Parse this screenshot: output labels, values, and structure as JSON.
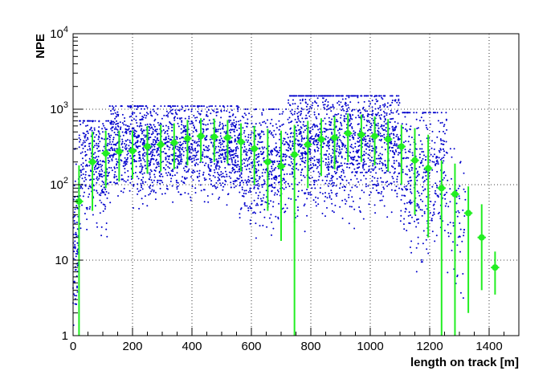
{
  "chart_data": {
    "type": "scatter",
    "xlabel": "length on track [m]",
    "ylabel": "NPE",
    "xlim": [
      0,
      1500
    ],
    "ylim": [
      1,
      10000
    ],
    "yscale": "log",
    "grid": true,
    "x_ticks": [
      0,
      200,
      400,
      600,
      800,
      1000,
      1200,
      1400
    ],
    "x_tick_labels": [
      "0",
      "200",
      "400",
      "600",
      "800",
      "1000",
      "1200",
      "1400"
    ],
    "y_ticks": [
      1,
      10,
      100,
      1000,
      10000
    ],
    "y_tick_labels": [
      {
        "base": "1",
        "exp": ""
      },
      {
        "base": "10",
        "exp": ""
      },
      {
        "base": "10",
        "exp": "2"
      },
      {
        "base": "10",
        "exp": "3"
      },
      {
        "base": "10",
        "exp": "4"
      }
    ],
    "colors": {
      "scatter": "#0000cc",
      "profile": "#22ee22",
      "grid": "#000000"
    },
    "series": [
      {
        "kind": "profile",
        "x": [
          20,
          65,
          110,
          155,
          200,
          250,
          295,
          340,
          385,
          430,
          475,
          520,
          565,
          610,
          655,
          700,
          745,
          790,
          835,
          880,
          925,
          970,
          1015,
          1060,
          1105,
          1150,
          1195,
          1240,
          1285,
          1330,
          1375,
          1420
        ],
        "y": [
          60,
          200,
          260,
          275,
          280,
          320,
          340,
          360,
          410,
          440,
          430,
          420,
          370,
          300,
          200,
          175,
          250,
          340,
          400,
          420,
          480,
          460,
          440,
          400,
          320,
          210,
          165,
          90,
          75,
          42,
          20,
          8
        ],
        "y_low": [
          1,
          45,
          90,
          110,
          120,
          140,
          150,
          160,
          180,
          200,
          200,
          190,
          150,
          100,
          45,
          18,
          1,
          90,
          130,
          160,
          200,
          200,
          180,
          150,
          100,
          40,
          20,
          1,
          1,
          2,
          4,
          3.5
        ],
        "y_high": [
          180,
          500,
          520,
          520,
          520,
          600,
          620,
          650,
          720,
          760,
          750,
          720,
          650,
          600,
          550,
          520,
          620,
          700,
          760,
          800,
          880,
          850,
          800,
          740,
          620,
          560,
          460,
          210,
          190,
          95,
          55,
          13
        ]
      },
      {
        "kind": "scatter",
        "bands": [
          {
            "x0": 20,
            "x1": 120,
            "ymin": 8,
            "ymax": 700,
            "median": 200,
            "n": 320
          },
          {
            "x0": 120,
            "x1": 560,
            "ymin": 30,
            "ymax": 1100,
            "median": 320,
            "n": 1500
          },
          {
            "x0": 560,
            "x1": 720,
            "ymin": 12,
            "ymax": 1000,
            "median": 200,
            "n": 520
          },
          {
            "x0": 720,
            "x1": 1100,
            "ymin": 10,
            "ymax": 1500,
            "median": 380,
            "n": 1400
          },
          {
            "x0": 1100,
            "x1": 1260,
            "ymin": 2,
            "ymax": 900,
            "median": 150,
            "n": 380
          },
          {
            "x0": 1260,
            "x1": 1320,
            "ymin": 1.5,
            "ymax": 300,
            "median": 40,
            "n": 60
          },
          {
            "x0": 0,
            "x1": 20,
            "ymin": 1.2,
            "ymax": 300,
            "median": 20,
            "n": 90
          }
        ]
      }
    ]
  }
}
